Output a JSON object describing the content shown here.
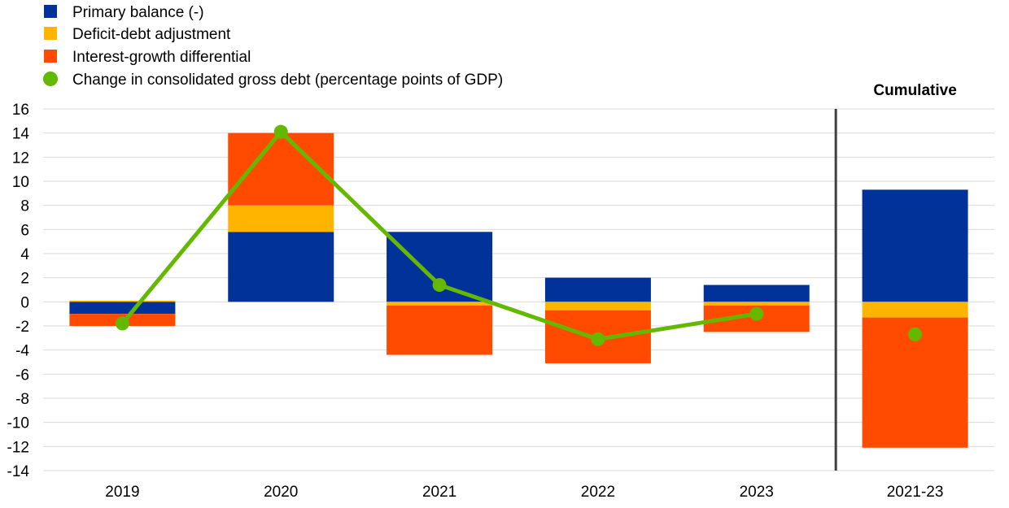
{
  "chart_data": {
    "type": "bar",
    "stacked": true,
    "categories": [
      "2019",
      "2020",
      "2021",
      "2022",
      "2023",
      "2021-23"
    ],
    "series": [
      {
        "name": "Primary balance (-)",
        "kind": "bar",
        "color": "#003299",
        "values": [
          -1.0,
          5.8,
          5.8,
          2.0,
          1.4,
          9.3
        ]
      },
      {
        "name": "Deficit-debt adjustment",
        "kind": "bar",
        "color": "#FFB400",
        "values": [
          0.1,
          2.2,
          -0.3,
          -0.7,
          -0.3,
          -1.3
        ]
      },
      {
        "name": "Interest-growth differential",
        "kind": "bar",
        "color": "#FF4B00",
        "values": [
          -1.0,
          6.0,
          -4.1,
          -4.4,
          -2.2,
          -10.8
        ]
      },
      {
        "name": "Change in consolidated gross debt (percentage points of GDP)",
        "kind": "line",
        "color": "#65B800",
        "values": [
          -1.8,
          14.1,
          1.4,
          -3.1,
          -1.0,
          -2.7
        ]
      }
    ],
    "ylim": [
      -14,
      16
    ],
    "yticks": [
      -14,
      -12,
      -10,
      -8,
      -6,
      -4,
      -2,
      0,
      2,
      4,
      6,
      8,
      10,
      12,
      14,
      16
    ],
    "grid": true,
    "legend_position": "top-left",
    "line_connects_first_n": 5,
    "annotations": [
      {
        "text": "Cumulative"
      }
    ]
  }
}
